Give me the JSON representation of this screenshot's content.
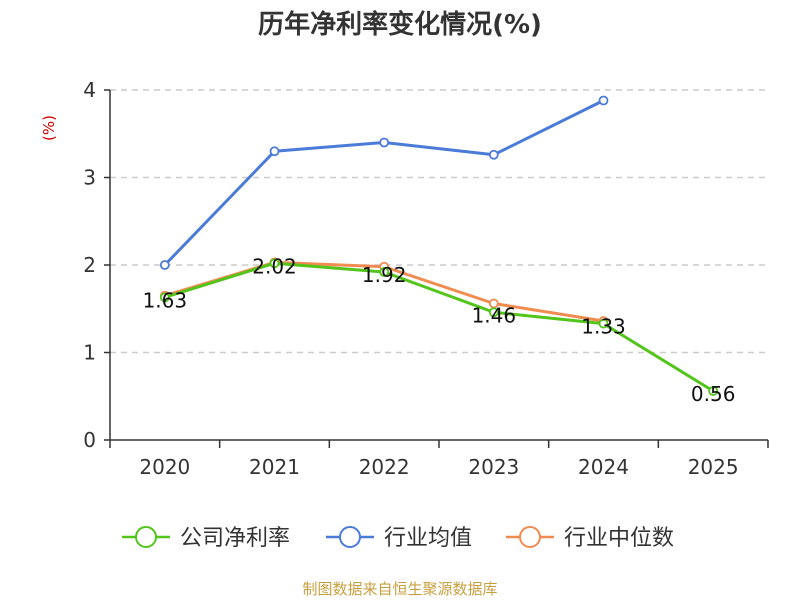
{
  "chart_data": {
    "type": "line",
    "title": "历年净利率变化情况(%)",
    "ylabel": "(%)",
    "xlabel": "",
    "categories": [
      "2020",
      "2021",
      "2022",
      "2023",
      "2024",
      "2025"
    ],
    "ylim": [
      0,
      4
    ],
    "yticks": [
      0,
      1,
      2,
      3,
      4
    ],
    "ytick_labels": [
      "0",
      "1",
      "2",
      "3",
      "4"
    ],
    "grid": "horizontal-dashed",
    "legend_position": "bottom",
    "series": [
      {
        "name": "公司净利率",
        "color": "#52c41a",
        "values": [
          1.63,
          2.02,
          1.92,
          1.46,
          1.33,
          0.56
        ],
        "labels": [
          "1.63",
          "2.02",
          "1.92",
          "1.46",
          "1.33",
          "0.56"
        ]
      },
      {
        "name": "行业均值",
        "color": "#4a7bd8",
        "values": [
          2.0,
          3.3,
          3.4,
          3.26,
          3.88,
          null
        ]
      },
      {
        "name": "行业中位数",
        "color": "#f08c50",
        "values": [
          1.65,
          2.03,
          1.98,
          1.56,
          1.36,
          null
        ]
      }
    ],
    "axis_label_color": "#cc0000",
    "axis_color": "#333333",
    "grid_color": "#cccccc"
  },
  "source_note": {
    "text": "制图数据来自恒生聚源数据库",
    "color": "#c8a040"
  }
}
